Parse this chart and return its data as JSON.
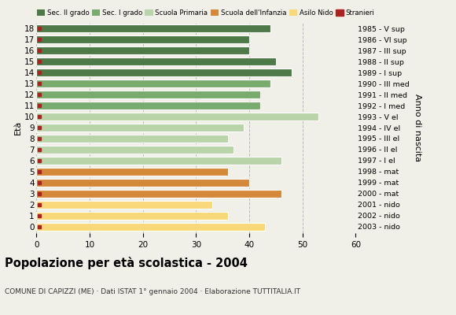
{
  "ages": [
    18,
    17,
    16,
    15,
    14,
    13,
    12,
    11,
    10,
    9,
    8,
    7,
    6,
    5,
    4,
    3,
    2,
    1,
    0
  ],
  "values": [
    44,
    40,
    40,
    45,
    48,
    44,
    42,
    42,
    53,
    39,
    36,
    37,
    46,
    36,
    40,
    46,
    33,
    36,
    43
  ],
  "anni_nascita": [
    "1985 - V sup",
    "1986 - VI sup",
    "1987 - III sup",
    "1988 - II sup",
    "1989 - I sup",
    "1990 - III med",
    "1991 - II med",
    "1992 - I med",
    "1993 - V el",
    "1994 - IV el",
    "1995 - III el",
    "1996 - II el",
    "1997 - I el",
    "1998 - mat",
    "1999 - mat",
    "2000 - mat",
    "2001 - nido",
    "2002 - nido",
    "2003 - nido"
  ],
  "categories": {
    "Sec. II grado": {
      "ages": [
        18,
        17,
        16,
        15,
        14
      ],
      "color": "#4e7a47"
    },
    "Sec. I grado": {
      "ages": [
        13,
        12,
        11
      ],
      "color": "#7aab6e"
    },
    "Scuola Primaria": {
      "ages": [
        10,
        9,
        8,
        7,
        6
      ],
      "color": "#b8d4a8"
    },
    "Scuola dell'Infanzia": {
      "ages": [
        5,
        4,
        3
      ],
      "color": "#d4883a"
    },
    "Asilo Nido": {
      "ages": [
        2,
        1,
        0
      ],
      "color": "#f9d87a"
    }
  },
  "stranieri_color": "#aa2222",
  "stranieri_size": 3.5,
  "bar_height": 0.72,
  "xlim": [
    0,
    60
  ],
  "xticks": [
    0,
    10,
    20,
    30,
    40,
    50,
    60
  ],
  "title": "Popolazione per età scolastica - 2004",
  "subtitle": "COMUNE DI CAPIZZI (ME) · Dati ISTAT 1° gennaio 2004 · Elaborazione TUTTITALIA.IT",
  "ylabel": "Età",
  "ylabel2": "Anno di nascita",
  "bg_color": "#f0f0e8",
  "grid_color": "#bbbbbb",
  "legend_order": [
    "Sec. II grado",
    "Sec. I grado",
    "Scuola Primaria",
    "Scuola dell'Infanzia",
    "Asilo Nido",
    "Stranieri"
  ],
  "legend_colors": [
    "#4e7a47",
    "#7aab6e",
    "#b8d4a8",
    "#d4883a",
    "#f9d87a",
    "#aa2222"
  ]
}
